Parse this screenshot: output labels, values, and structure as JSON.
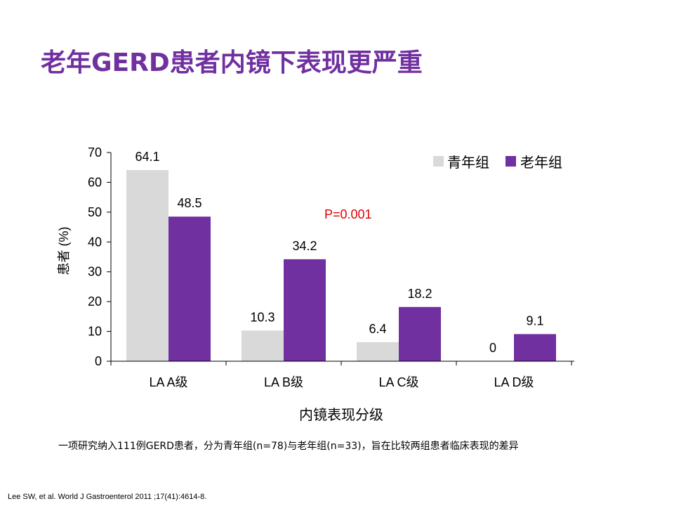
{
  "slide": {
    "title": "老年GERD患者内镜下表现更严重",
    "note": "一项研究纳入111例GERD患者，分为青年组(n=78)与老年组(n=33)，旨在比较两组患者临床表现的差异",
    "citation": "Lee SW, et al. World J Gastroenterol 2011 ;17(41):4614-8."
  },
  "chart_data": {
    "type": "bar",
    "categories": [
      "LA A级",
      "LA B级",
      "LA C级",
      "LA D级"
    ],
    "series": [
      {
        "name": "青年组",
        "values": [
          64.1,
          10.3,
          6.4,
          0
        ],
        "labels": [
          "64.1",
          "10.3",
          "6.4",
          "0"
        ],
        "color": "#D9D9D9"
      },
      {
        "name": "老年组",
        "values": [
          48.5,
          34.2,
          18.2,
          9.1
        ],
        "labels": [
          "48.5",
          "34.2",
          "18.2",
          "9.1"
        ],
        "color": "#7030A0"
      }
    ],
    "xlabel": "内镜表现分级",
    "ylabel": "患者 (%)",
    "ylim": [
      0,
      70
    ],
    "yticks": [
      0,
      10,
      20,
      30,
      40,
      50,
      60,
      70
    ],
    "annotation": "P=0.001",
    "annotation_color": "#E00000",
    "legend_position": "top-right",
    "grid": false
  }
}
